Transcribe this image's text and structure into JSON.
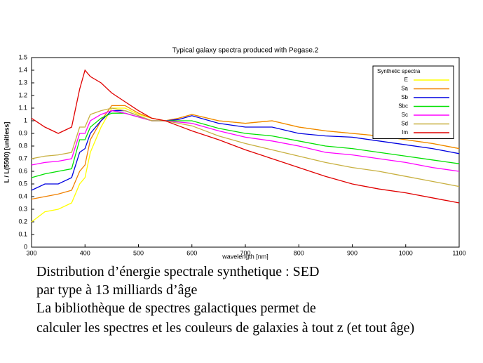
{
  "chart_data": {
    "type": "line",
    "title": "Typical galaxy spectra produced with Pegase.2",
    "xlabel": "wavelength [nm]",
    "ylabel": "L / L(5500) [unitless]",
    "x": [
      300,
      325,
      350,
      375,
      390,
      400,
      410,
      430,
      450,
      475,
      500,
      525,
      550,
      575,
      600,
      650,
      700,
      750,
      800,
      850,
      900,
      950,
      1000,
      1050,
      1100
    ],
    "series": [
      {
        "name": "E",
        "color": "#ffff00",
        "values": [
          0.2,
          0.28,
          0.3,
          0.35,
          0.5,
          0.55,
          0.75,
          0.95,
          1.1,
          1.1,
          1.05,
          1.02,
          1.0,
          1.02,
          1.05,
          1.0,
          0.98,
          1.0,
          0.95,
          0.92,
          0.9,
          0.88,
          0.85,
          0.82,
          0.78
        ]
      },
      {
        "name": "Sa",
        "color": "#f08000",
        "values": [
          0.38,
          0.4,
          0.42,
          0.45,
          0.6,
          0.65,
          0.85,
          1.0,
          1.12,
          1.12,
          1.06,
          1.02,
          1.0,
          1.02,
          1.05,
          1.0,
          0.98,
          1.0,
          0.95,
          0.92,
          0.9,
          0.88,
          0.85,
          0.82,
          0.78
        ]
      },
      {
        "name": "Sb",
        "color": "#0000e0",
        "values": [
          0.45,
          0.5,
          0.5,
          0.55,
          0.75,
          0.78,
          0.9,
          1.0,
          1.08,
          1.08,
          1.04,
          1.0,
          1.0,
          1.01,
          1.04,
          0.98,
          0.95,
          0.95,
          0.9,
          0.88,
          0.87,
          0.84,
          0.81,
          0.78,
          0.74
        ]
      },
      {
        "name": "Sbc",
        "color": "#00e000",
        "values": [
          0.55,
          0.58,
          0.6,
          0.62,
          0.85,
          0.85,
          0.95,
          1.02,
          1.06,
          1.06,
          1.03,
          1.0,
          1.0,
          1.0,
          1.0,
          0.94,
          0.9,
          0.88,
          0.84,
          0.8,
          0.78,
          0.75,
          0.72,
          0.69,
          0.66
        ]
      },
      {
        "name": "Sc",
        "color": "#ff00ff",
        "values": [
          0.65,
          0.67,
          0.68,
          0.7,
          0.9,
          0.9,
          1.0,
          1.05,
          1.08,
          1.06,
          1.03,
          1.0,
          1.0,
          0.99,
          0.98,
          0.92,
          0.87,
          0.84,
          0.8,
          0.75,
          0.73,
          0.7,
          0.67,
          0.63,
          0.6
        ]
      },
      {
        "name": "Sd",
        "color": "#c8b040",
        "values": [
          0.7,
          0.72,
          0.73,
          0.75,
          0.95,
          0.95,
          1.05,
          1.08,
          1.1,
          1.08,
          1.04,
          1.0,
          1.0,
          0.98,
          0.96,
          0.88,
          0.82,
          0.77,
          0.72,
          0.67,
          0.63,
          0.6,
          0.56,
          0.52,
          0.48
        ]
      },
      {
        "name": "Im",
        "color": "#e00000",
        "values": [
          1.02,
          0.95,
          0.9,
          0.95,
          1.25,
          1.4,
          1.35,
          1.3,
          1.22,
          1.15,
          1.08,
          1.02,
          1.0,
          0.96,
          0.92,
          0.85,
          0.77,
          0.7,
          0.63,
          0.56,
          0.5,
          0.46,
          0.43,
          0.39,
          0.35
        ]
      }
    ],
    "legend_title": "Synthetic spectra",
    "legend": "upper right",
    "grid": false,
    "xlim": [
      300,
      1100
    ],
    "xticks": [
      300,
      400,
      500,
      600,
      700,
      800,
      900,
      1000,
      1100
    ],
    "ylim": [
      0,
      1.5
    ],
    "yticks": [
      0,
      0.1,
      0.2,
      0.3,
      0.4,
      0.5,
      0.6,
      0.7,
      0.8,
      0.9,
      1,
      1.1,
      1.2,
      1.3,
      1.4,
      1.5
    ]
  },
  "caption": [
    "Distribution d’énergie spectrale synthetique : SED",
    "par type à 13 milliards d’âge",
    "La bibliothèque de spectres galactiques permet de",
    "calculer les spectres et les couleurs de galaxies à tout z (et tout âge)"
  ]
}
